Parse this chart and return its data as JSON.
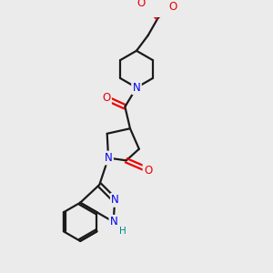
{
  "bg_color": "#ebebeb",
  "bond_color": "#1a1a1a",
  "n_color": "#0000ee",
  "o_color": "#ee0000",
  "h_color": "#008888",
  "line_width": 1.6,
  "font_size": 8.5,
  "fig_size": [
    3.0,
    3.0
  ],
  "dpi": 100,
  "xlim": [
    0,
    10
  ],
  "ylim": [
    0,
    10
  ]
}
